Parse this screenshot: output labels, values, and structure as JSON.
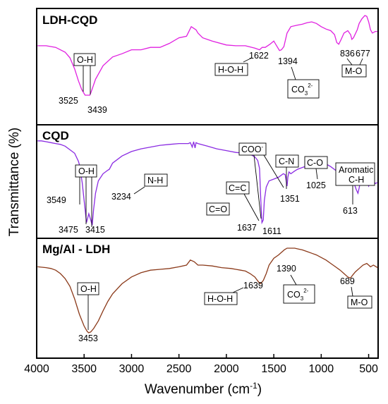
{
  "chart_data": {
    "type": "line",
    "xlabel": "Wavenumber (cm",
    "xlabel_sup": "-1",
    "xlabel_close": ")",
    "ylabel": "Transmittance (%)",
    "xlim": [
      4000,
      400
    ],
    "xticks": [
      "4000",
      "3500",
      "3000",
      "2500",
      "2000",
      "1500",
      "1000",
      "500"
    ],
    "xtick_values": [
      4000,
      3500,
      3000,
      2500,
      2000,
      1500,
      1000,
      500
    ],
    "panels": [
      {
        "title": "LDH-CQD",
        "color": "#e020e0",
        "x": [
          3990,
          3900,
          3800,
          3700,
          3650,
          3600,
          3560,
          3525,
          3490,
          3460,
          3439,
          3420,
          3380,
          3300,
          3200,
          3100,
          3000,
          2900,
          2800,
          2700,
          2600,
          2500,
          2420,
          2370,
          2345,
          2320,
          2300,
          2250,
          2150,
          2000,
          1900,
          1800,
          1700,
          1650,
          1622,
          1590,
          1540,
          1500,
          1470,
          1440,
          1420,
          1394,
          1360,
          1320,
          1250,
          1200,
          1150,
          1100,
          1050,
          1000,
          950,
          900,
          860,
          836,
          815,
          790,
          760,
          720,
          690,
          677,
          660,
          620,
          600,
          570,
          540,
          520,
          500,
          480,
          460,
          430,
          410
        ],
        "y": [
          0.62,
          0.62,
          0.6,
          0.54,
          0.47,
          0.33,
          0.18,
          0.07,
          0.0,
          0.0,
          0.0,
          0.06,
          0.2,
          0.37,
          0.48,
          0.52,
          0.57,
          0.57,
          0.6,
          0.6,
          0.65,
          0.72,
          0.74,
          0.86,
          0.84,
          0.82,
          0.78,
          0.72,
          0.68,
          0.63,
          0.62,
          0.62,
          0.59,
          0.57,
          0.6,
          0.6,
          0.64,
          0.68,
          0.62,
          0.56,
          0.57,
          0.61,
          0.78,
          0.86,
          0.88,
          0.89,
          0.91,
          0.92,
          0.9,
          0.86,
          0.83,
          0.81,
          0.76,
          0.66,
          0.64,
          0.7,
          0.78,
          0.81,
          0.76,
          0.7,
          0.72,
          0.82,
          0.9,
          0.96,
          1.0,
          0.99,
          0.92,
          0.82,
          0.78,
          0.8,
          0.8
        ]
      },
      {
        "title": "CQD",
        "color": "#8a2be2",
        "x": [
          3990,
          3950,
          3900,
          3850,
          3800,
          3750,
          3700,
          3650,
          3600,
          3560,
          3549,
          3520,
          3490,
          3475,
          3450,
          3430,
          3415,
          3400,
          3380,
          3350,
          3300,
          3250,
          3234,
          3200,
          3100,
          3000,
          2900,
          2800,
          2700,
          2600,
          2500,
          2400,
          2380,
          2360,
          2345,
          2330,
          2320,
          2300,
          2200,
          2100,
          2000,
          1900,
          1800,
          1750,
          1700,
          1670,
          1650,
          1637,
          1625,
          1611,
          1600,
          1580,
          1550,
          1500,
          1450,
          1400,
          1380,
          1360,
          1351,
          1340,
          1320,
          1280,
          1250,
          1200,
          1150,
          1100,
          1050,
          1025,
          1000,
          950,
          900,
          850,
          800,
          760,
          700,
          650,
          630,
          613,
          600,
          580,
          560,
          540,
          520,
          500,
          480,
          460,
          430,
          410
        ],
        "y": [
          0.97,
          0.97,
          0.96,
          0.95,
          0.94,
          0.93,
          0.91,
          0.87,
          0.83,
          0.74,
          0.7,
          0.5,
          0.2,
          0.05,
          0.15,
          0.08,
          0.02,
          0.2,
          0.38,
          0.52,
          0.6,
          0.64,
          0.65,
          0.72,
          0.8,
          0.85,
          0.88,
          0.9,
          0.92,
          0.93,
          0.94,
          0.94,
          0.95,
          0.9,
          0.96,
          0.89,
          0.95,
          0.94,
          0.91,
          0.88,
          0.86,
          0.84,
          0.83,
          0.82,
          0.79,
          0.75,
          0.66,
          0.3,
          0.05,
          0.08,
          0.3,
          0.45,
          0.52,
          0.54,
          0.56,
          0.6,
          0.59,
          0.46,
          0.56,
          0.62,
          0.6,
          0.63,
          0.65,
          0.67,
          0.69,
          0.71,
          0.73,
          0.74,
          0.74,
          0.71,
          0.68,
          0.64,
          0.6,
          0.59,
          0.55,
          0.48,
          0.42,
          0.38,
          0.44,
          0.55,
          0.58,
          0.5,
          0.52,
          0.46,
          0.5,
          0.54,
          0.49,
          0.5
        ]
      },
      {
        "title": "Mg/Al - LDH",
        "color": "#8b3a1a",
        "x": [
          3990,
          3900,
          3850,
          3800,
          3750,
          3700,
          3650,
          3600,
          3550,
          3500,
          3470,
          3453,
          3430,
          3400,
          3350,
          3300,
          3250,
          3200,
          3100,
          3000,
          2900,
          2800,
          2700,
          2600,
          2500,
          2420,
          2380,
          2340,
          2300,
          2250,
          2150,
          2050,
          1950,
          1900,
          1850,
          1800,
          1750,
          1700,
          1660,
          1639,
          1610,
          1580,
          1550,
          1500,
          1450,
          1420,
          1400,
          1390,
          1360,
          1320,
          1280,
          1240,
          1200,
          1150,
          1100,
          1050,
          1000,
          950,
          900,
          850,
          800,
          760,
          720,
          700,
          689,
          670,
          640,
          600,
          560,
          520,
          500,
          480,
          450,
          420,
          405
        ],
        "y": [
          0.78,
          0.77,
          0.76,
          0.74,
          0.7,
          0.64,
          0.55,
          0.4,
          0.22,
          0.08,
          0.02,
          0.0,
          0.01,
          0.05,
          0.14,
          0.26,
          0.37,
          0.46,
          0.58,
          0.66,
          0.71,
          0.74,
          0.75,
          0.76,
          0.78,
          0.8,
          0.86,
          0.84,
          0.8,
          0.8,
          0.79,
          0.77,
          0.76,
          0.75,
          0.74,
          0.73,
          0.7,
          0.66,
          0.6,
          0.58,
          0.62,
          0.7,
          0.8,
          0.88,
          0.92,
          0.95,
          0.97,
          0.98,
          1.0,
          1.0,
          1.0,
          0.99,
          0.98,
          0.96,
          0.94,
          0.92,
          0.89,
          0.86,
          0.82,
          0.78,
          0.74,
          0.7,
          0.66,
          0.65,
          0.65,
          0.68,
          0.72,
          0.76,
          0.8,
          0.82,
          0.8,
          0.78,
          0.8,
          0.78,
          0.77
        ]
      }
    ],
    "annotations": {
      "ldh_cqd": {
        "oh": "O-H",
        "w3525": "3525",
        "w3439": "3439",
        "hoh": "H-O-H",
        "w1622": "1622",
        "w1394": "1394",
        "co3": "CO",
        "co3_sub": "3",
        "co3_sup": "2-",
        "w836": "836",
        "w677": "677",
        "mo": "M-O"
      },
      "cqd": {
        "oh": "O-H",
        "w3549": "3549",
        "w3475": "3475",
        "w3415": "3415",
        "nh": "N-H",
        "w3234": "3234",
        "co_dbl": "C=O",
        "cc_dbl": "C=C",
        "w1637": "1637",
        "w1611": "1611",
        "coo": "COO",
        "coo_sup": "-",
        "cn": "C-N",
        "w1351": "1351",
        "co": "C-O",
        "w1025": "1025",
        "arom1": "Aromatic",
        "arom2": "C-H",
        "w613": "613"
      },
      "ldh": {
        "oh": "O-H",
        "w3453": "3453",
        "hoh": "H-O-H",
        "w1639": "1639",
        "w1390": "1390",
        "co3": "CO",
        "co3_sub": "3",
        "co3_sup": "2-",
        "w689": "689",
        "mo": "M-O"
      }
    }
  }
}
